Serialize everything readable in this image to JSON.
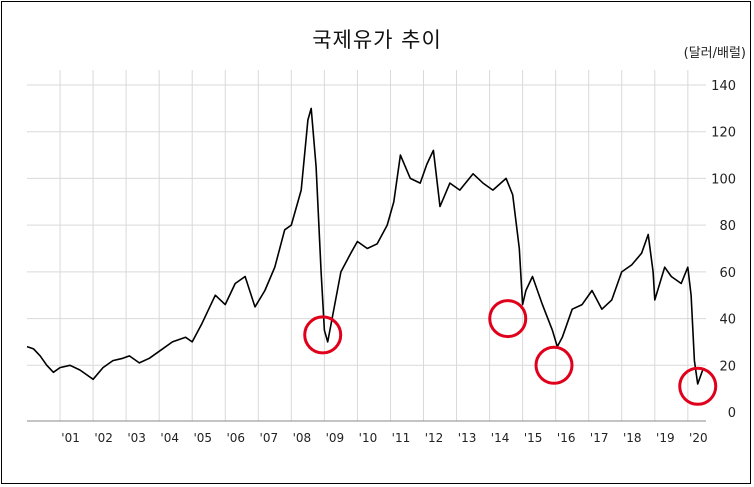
{
  "chart_data": {
    "type": "line",
    "title": "국제유가 추이",
    "unit": "(달러/배럴)",
    "xlabel": "",
    "ylabel": "",
    "ylim": [
      0,
      140
    ],
    "yticks": [
      0,
      20,
      40,
      60,
      80,
      100,
      120,
      140
    ],
    "xticks": [
      "'01",
      "'02",
      "'03",
      "'04",
      "'05",
      "'06",
      "'07",
      "'08",
      "'09",
      "'10",
      "'11",
      "'12",
      "'13",
      "'14",
      "'15",
      "'16",
      "'17",
      "'18",
      "'19",
      "'20"
    ],
    "grid": true,
    "series": [
      {
        "values": [
          [
            2000.0,
            28
          ],
          [
            2000.2,
            27
          ],
          [
            2000.4,
            24
          ],
          [
            2000.6,
            20
          ],
          [
            2000.8,
            17
          ],
          [
            2001.0,
            19
          ],
          [
            2001.3,
            20
          ],
          [
            2001.6,
            18
          ],
          [
            2001.8,
            16
          ],
          [
            2002.0,
            14
          ],
          [
            2002.3,
            19
          ],
          [
            2002.6,
            22
          ],
          [
            2002.9,
            23
          ],
          [
            2003.1,
            24
          ],
          [
            2003.4,
            21
          ],
          [
            2003.7,
            23
          ],
          [
            2004.0,
            26
          ],
          [
            2004.4,
            30
          ],
          [
            2004.8,
            32
          ],
          [
            2005.0,
            30
          ],
          [
            2005.3,
            38
          ],
          [
            2005.7,
            50
          ],
          [
            2006.0,
            46
          ],
          [
            2006.3,
            55
          ],
          [
            2006.6,
            58
          ],
          [
            2006.9,
            45
          ],
          [
            2007.2,
            52
          ],
          [
            2007.5,
            62
          ],
          [
            2007.8,
            78
          ],
          [
            2008.0,
            80
          ],
          [
            2008.3,
            95
          ],
          [
            2008.5,
            125
          ],
          [
            2008.6,
            130
          ],
          [
            2008.75,
            105
          ],
          [
            2008.9,
            60
          ],
          [
            2009.0,
            35
          ],
          [
            2009.1,
            30
          ],
          [
            2009.3,
            45
          ],
          [
            2009.5,
            60
          ],
          [
            2009.8,
            68
          ],
          [
            2010.0,
            73
          ],
          [
            2010.3,
            70
          ],
          [
            2010.6,
            72
          ],
          [
            2010.9,
            80
          ],
          [
            2011.1,
            90
          ],
          [
            2011.3,
            110
          ],
          [
            2011.6,
            100
          ],
          [
            2011.9,
            98
          ],
          [
            2012.1,
            106
          ],
          [
            2012.3,
            112
          ],
          [
            2012.5,
            88
          ],
          [
            2012.8,
            98
          ],
          [
            2013.1,
            95
          ],
          [
            2013.5,
            102
          ],
          [
            2013.8,
            98
          ],
          [
            2014.1,
            95
          ],
          [
            2014.5,
            100
          ],
          [
            2014.7,
            93
          ],
          [
            2014.9,
            70
          ],
          [
            2015.0,
            46
          ],
          [
            2015.1,
            52
          ],
          [
            2015.3,
            58
          ],
          [
            2015.6,
            46
          ],
          [
            2015.9,
            35
          ],
          [
            2016.05,
            28
          ],
          [
            2016.2,
            32
          ],
          [
            2016.5,
            44
          ],
          [
            2016.8,
            46
          ],
          [
            2017.1,
            52
          ],
          [
            2017.4,
            44
          ],
          [
            2017.7,
            48
          ],
          [
            2018.0,
            60
          ],
          [
            2018.3,
            63
          ],
          [
            2018.6,
            68
          ],
          [
            2018.8,
            76
          ],
          [
            2018.95,
            60
          ],
          [
            2019.0,
            48
          ],
          [
            2019.3,
            62
          ],
          [
            2019.5,
            58
          ],
          [
            2019.8,
            55
          ],
          [
            2020.0,
            62
          ],
          [
            2020.1,
            50
          ],
          [
            2020.2,
            22
          ],
          [
            2020.3,
            12
          ],
          [
            2020.45,
            18
          ]
        ]
      }
    ],
    "annotations": [
      {
        "shape": "circle",
        "x": 2008.95,
        "y": 33
      },
      {
        "shape": "circle",
        "x": 2014.55,
        "y": 40
      },
      {
        "shape": "circle",
        "x": 2015.95,
        "y": 20
      },
      {
        "shape": "circle",
        "x": 2020.3,
        "y": 11
      }
    ],
    "colors": {
      "line": "#000000",
      "grid": "#d9d9d9",
      "annotation": "#e0001b"
    }
  }
}
